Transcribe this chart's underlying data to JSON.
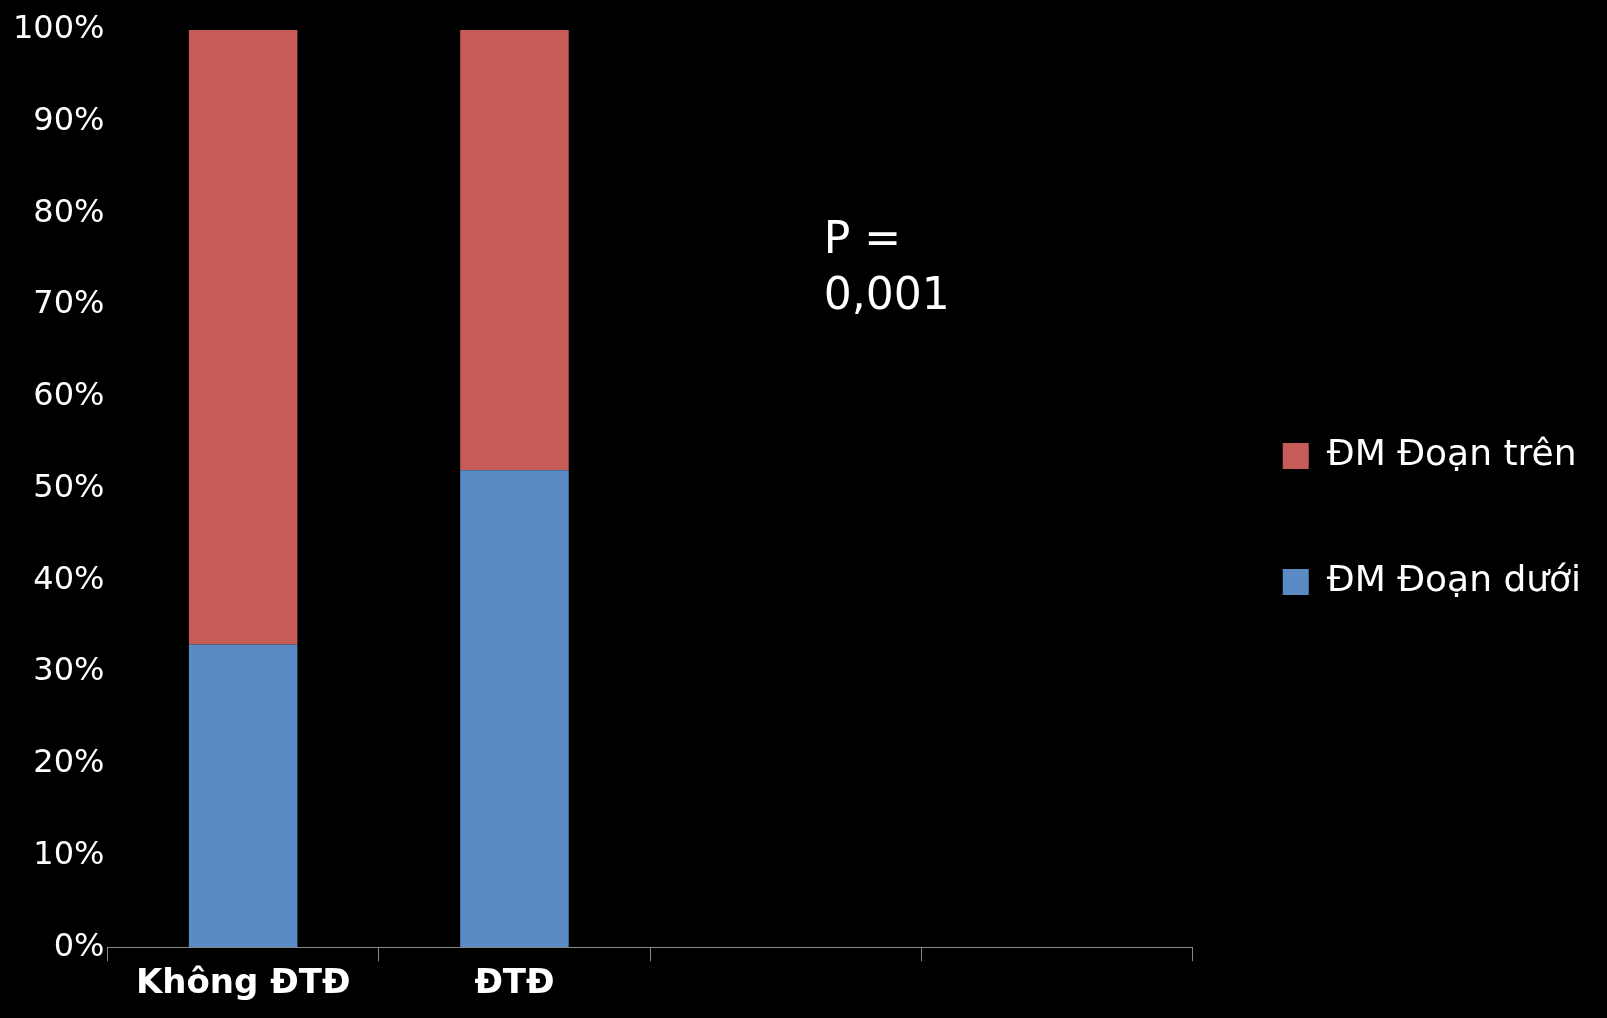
{
  "chart_data": {
    "type": "bar",
    "stacked": true,
    "categories": [
      "Không ĐTĐ",
      "ĐTĐ",
      null,
      null
    ],
    "series": [
      {
        "name": "ĐM Đoạn dưới",
        "color": "#5b8bc4",
        "values": [
          33,
          52,
          null,
          null
        ]
      },
      {
        "name": "ĐM Đoạn trên",
        "color": "#c65b57",
        "values": [
          67,
          48,
          null,
          null
        ]
      }
    ],
    "ylim": [
      0,
      100
    ],
    "yticks": [
      {
        "value": 0,
        "label": "0%"
      },
      {
        "value": 10,
        "label": "10%"
      },
      {
        "value": 20,
        "label": "20%"
      },
      {
        "value": 30,
        "label": "30%"
      },
      {
        "value": 40,
        "label": "40%"
      },
      {
        "value": 50,
        "label": "50%"
      },
      {
        "value": 60,
        "label": "60%"
      },
      {
        "value": 70,
        "label": "70%"
      },
      {
        "value": 80,
        "label": "80%"
      },
      {
        "value": 90,
        "label": "90%"
      },
      {
        "value": 100,
        "label": "100%"
      }
    ],
    "grid": false,
    "legend": "right",
    "annotations": [
      "P = 0,001"
    ]
  }
}
